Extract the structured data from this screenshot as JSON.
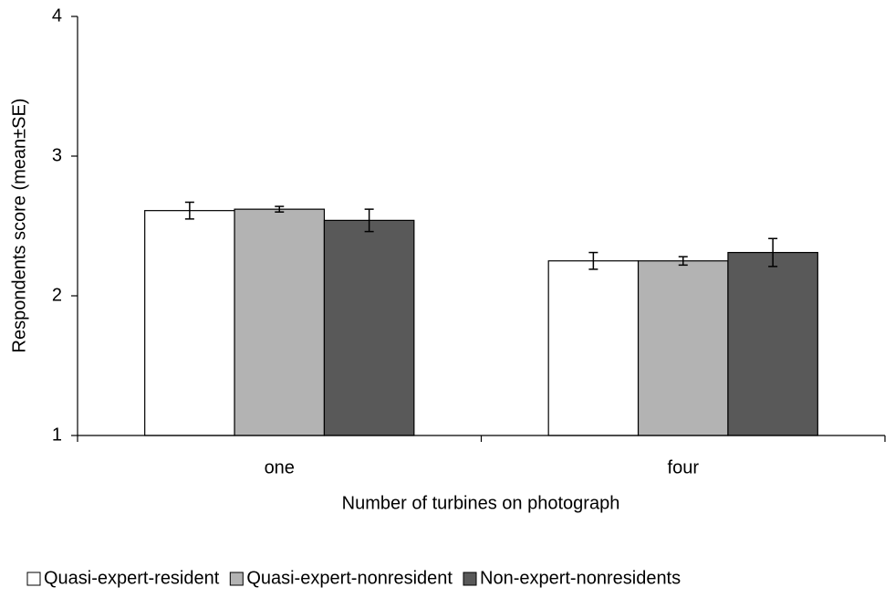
{
  "chart_data": {
    "type": "bar",
    "categories": [
      "one",
      "four"
    ],
    "series": [
      {
        "name": "Quasi-expert-resident",
        "color": "#ffffff",
        "values": [
          2.61,
          2.25
        ],
        "errors": [
          0.06,
          0.06
        ]
      },
      {
        "name": "Quasi-expert-nonresident",
        "color": "#b3b3b3",
        "values": [
          2.62,
          2.25
        ],
        "errors": [
          0.02,
          0.03
        ]
      },
      {
        "name": "Non-expert-nonresidents",
        "color": "#595959",
        "values": [
          2.54,
          2.31
        ],
        "errors": [
          0.08,
          0.1
        ]
      }
    ],
    "x_label": "Number of turbines on photograph",
    "y_label": "Respondents score (mean±SE)",
    "ylim": [
      1,
      4
    ],
    "yticks": [
      1,
      2,
      3,
      4
    ],
    "legend": "bottom"
  }
}
